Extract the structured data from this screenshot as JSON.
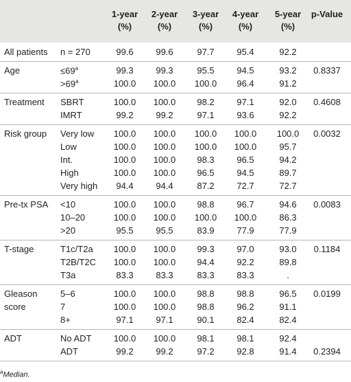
{
  "table": {
    "header": [
      {
        "lines": [
          "1-year",
          "(%)"
        ]
      },
      {
        "lines": [
          "2-year",
          "(%)"
        ]
      },
      {
        "lines": [
          "3-year",
          "(%)"
        ]
      },
      {
        "lines": [
          "4-year",
          "(%)"
        ]
      },
      {
        "lines": [
          "5-year",
          "(%)"
        ]
      },
      {
        "lines": [
          "p-Value"
        ]
      }
    ],
    "groups": [
      {
        "rows": [
          {
            "label": "All patients",
            "sub": "n = 270",
            "values": [
              "99.6",
              "99.6",
              "97.7",
              "95.4",
              "92.2"
            ]
          }
        ]
      },
      {
        "rows": [
          {
            "label": "Age",
            "sub": "≤69",
            "sup": "a",
            "values": [
              "99.3",
              "99.3",
              "95.5",
              "94.5",
              "93.2"
            ],
            "p": "0.8337"
          },
          {
            "sub": ">69",
            "sup": "a",
            "values": [
              "100.0",
              "100.0",
              "100.0",
              "96.4",
              "91.2"
            ]
          }
        ]
      },
      {
        "rows": [
          {
            "label": "Treatment",
            "sub": "SBRT",
            "values": [
              "100.0",
              "100.0",
              "98.2",
              "97.1",
              "92.0"
            ],
            "p": "0.4608"
          },
          {
            "sub": "IMRT",
            "values": [
              "99.2",
              "99.2",
              "97.1",
              "93.6",
              "92.2"
            ]
          }
        ]
      },
      {
        "rows": [
          {
            "label": "Risk group",
            "sub": "Very low",
            "values": [
              "100.0",
              "100.0",
              "100.0",
              "100.0",
              "100.0"
            ],
            "p": "0.0032"
          },
          {
            "sub": "Low",
            "values": [
              "100.0",
              "100.0",
              "100.0",
              "100.0",
              "95.7"
            ]
          },
          {
            "sub": "Int.",
            "values": [
              "100.0",
              "100.0",
              "98.3",
              "96.5",
              "94.2"
            ]
          },
          {
            "sub": "High",
            "values": [
              "100.0",
              "100.0",
              "96.5",
              "94.5",
              "89.7"
            ]
          },
          {
            "sub": "Very high",
            "values": [
              "94.4",
              "94.4",
              "87.2",
              "72.7",
              "72.7"
            ]
          }
        ]
      },
      {
        "rows": [
          {
            "label": "Pre-tx PSA",
            "sub": "<10",
            "values": [
              "100.0",
              "100.0",
              "98.8",
              "96.7",
              "94.6"
            ],
            "p": "0.0083"
          },
          {
            "sub": "10–20",
            "values": [
              "100.0",
              "100.0",
              "100.0",
              "100.0",
              "86.3"
            ]
          },
          {
            "sub": ">20",
            "values": [
              "95.5",
              "95.5",
              "83.9",
              "77.9",
              "77.9"
            ]
          }
        ]
      },
      {
        "rows": [
          {
            "label": "T-stage",
            "sub": "T1c/T2a",
            "values": [
              "100.0",
              "100.0",
              "99.3",
              "97.0",
              "93.0"
            ],
            "p": "0.1184"
          },
          {
            "sub": "T2B/T2C",
            "values": [
              "100.0",
              "100.0",
              "94.4",
              "92.2",
              "89.8"
            ]
          },
          {
            "sub": "T3a",
            "values": [
              "83.3",
              "83.3",
              "83.3",
              "83.3",
              "."
            ]
          }
        ]
      },
      {
        "rows": [
          {
            "label": "Gleason",
            "sub": "5–6",
            "values": [
              "100.0",
              "100.0",
              "98.8",
              "98.8",
              "96.5"
            ],
            "p": "0.0199"
          },
          {
            "label": "score",
            "sub": "7",
            "values": [
              "100.0",
              "100.0",
              "98.8",
              "96.2",
              "91.1"
            ]
          },
          {
            "sub": "8+",
            "values": [
              "97.1",
              "97.1",
              "90.1",
              "82.4",
              "82.4"
            ]
          }
        ]
      },
      {
        "rows": [
          {
            "label": "ADT",
            "sub": "No ADT",
            "values": [
              "100.0",
              "100.0",
              "98.1",
              "98.1",
              "92.4"
            ]
          },
          {
            "sub": "ADT",
            "values": [
              "99.2",
              "99.2",
              "97.2",
              "92.8",
              "91.4"
            ],
            "p": "0.2394"
          }
        ]
      }
    ],
    "footnote": {
      "marker": "a",
      "text": "Median."
    }
  }
}
